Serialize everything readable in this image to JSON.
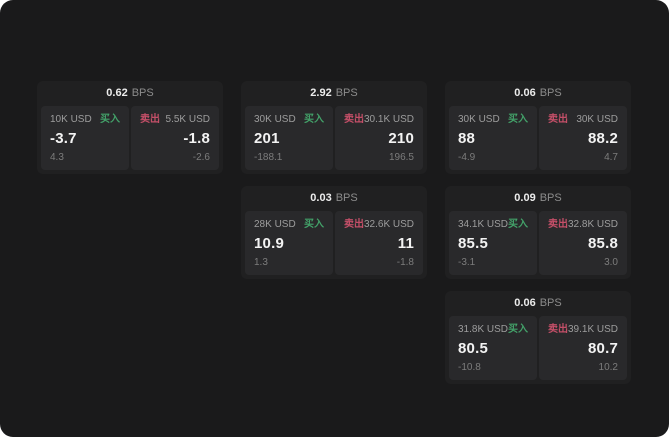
{
  "labels": {
    "bps_unit": "BPS",
    "buy": "买入",
    "sell": "卖出"
  },
  "accent_colors": {
    "buy": "#43a169",
    "sell": "#c44f68"
  },
  "cards": [
    {
      "bps": "0.62",
      "row": 1,
      "col": 1,
      "buy": {
        "size": "10K USD",
        "price": "-3.7",
        "delta": "4.3"
      },
      "sell": {
        "size": "5.5K USD",
        "price": "-1.8",
        "delta": "-2.6"
      }
    },
    {
      "bps": "2.92",
      "row": 1,
      "col": 2,
      "buy": {
        "size": "30K USD",
        "price": "201",
        "delta": "-188.1"
      },
      "sell": {
        "size": "30.1K USD",
        "price": "210",
        "delta": "196.5"
      }
    },
    {
      "bps": "0.06",
      "row": 1,
      "col": 3,
      "buy": {
        "size": "30K USD",
        "price": "88",
        "delta": "-4.9"
      },
      "sell": {
        "size": "30K USD",
        "price": "88.2",
        "delta": "4.7"
      }
    },
    {
      "bps": "0.03",
      "row": 2,
      "col": 2,
      "buy": {
        "size": "28K USD",
        "price": "10.9",
        "delta": "1.3"
      },
      "sell": {
        "size": "32.6K USD",
        "price": "11",
        "delta": "-1.8"
      }
    },
    {
      "bps": "0.09",
      "row": 2,
      "col": 3,
      "buy": {
        "size": "34.1K USD",
        "price": "85.5",
        "delta": "-3.1"
      },
      "sell": {
        "size": "32.8K USD",
        "price": "85.8",
        "delta": "3.0"
      }
    },
    {
      "bps": "0.06",
      "row": 3,
      "col": 3,
      "buy": {
        "size": "31.8K USD",
        "price": "80.5",
        "delta": "-10.8"
      },
      "sell": {
        "size": "39.1K USD",
        "price": "80.7",
        "delta": "10.2"
      }
    }
  ]
}
